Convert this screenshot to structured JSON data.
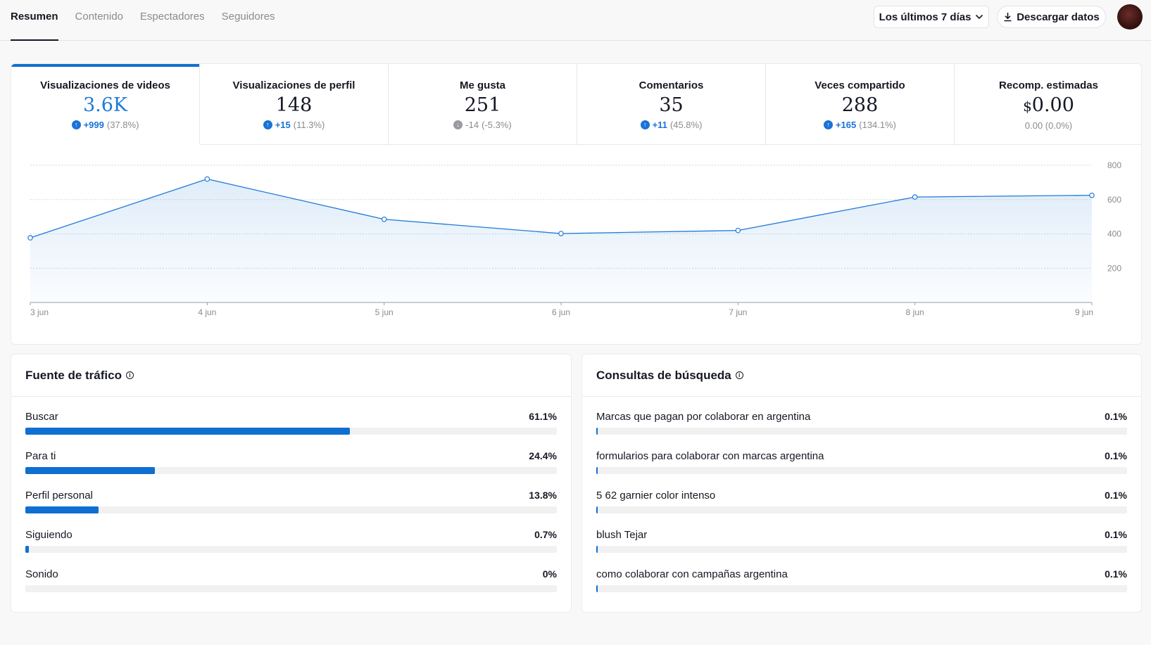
{
  "nav": {
    "tabs": [
      {
        "label": "Resumen",
        "active": true
      },
      {
        "label": "Contenido",
        "active": false
      },
      {
        "label": "Espectadores",
        "active": false
      },
      {
        "label": "Seguidores",
        "active": false
      }
    ],
    "date_range": "Los últimos 7 días",
    "download_label": "Descargar datos"
  },
  "metrics": [
    {
      "label": "Visualizaciones de videos",
      "value": "3.6K",
      "delta": "+999",
      "pct": "(37.8%)",
      "direction": "up",
      "active": true
    },
    {
      "label": "Visualizaciones de perfil",
      "value": "148",
      "delta": "+15",
      "pct": "(11.3%)",
      "direction": "up",
      "active": false
    },
    {
      "label": "Me gusta",
      "value": "251",
      "delta": "-14",
      "pct": "(-5.3%)",
      "direction": "down",
      "active": false
    },
    {
      "label": "Comentarios",
      "value": "35",
      "delta": "+11",
      "pct": "(45.8%)",
      "direction": "up",
      "active": false
    },
    {
      "label": "Veces compartido",
      "value": "288",
      "delta": "+165",
      "pct": "(134.1%)",
      "direction": "up",
      "active": false
    },
    {
      "label": "Recomp. estimadas",
      "value_prefix": "$",
      "value": "0.00",
      "delta": "",
      "pct": "0.00 (0.0%)",
      "direction": "none",
      "active": false
    }
  ],
  "chart_data": {
    "type": "area",
    "x": [
      "3 jun",
      "4 jun",
      "5 jun",
      "6 jun",
      "7 jun",
      "8 jun",
      "9 jun"
    ],
    "values": [
      377,
      720,
      485,
      402,
      420,
      615,
      625
    ],
    "yticks": [
      200,
      400,
      600,
      800
    ],
    "ylim": [
      0,
      800
    ],
    "grid": true,
    "line_color": "#1f7ad8"
  },
  "traffic": {
    "title": "Fuente de tráfico",
    "rows": [
      {
        "label": "Buscar",
        "pct_text": "61.1%",
        "value": 61.1
      },
      {
        "label": "Para ti",
        "pct_text": "24.4%",
        "value": 24.4
      },
      {
        "label": "Perfil personal",
        "pct_text": "13.8%",
        "value": 13.8
      },
      {
        "label": "Siguiendo",
        "pct_text": "0.7%",
        "value": 0.7
      },
      {
        "label": "Sonido",
        "pct_text": "0%",
        "value": 0
      }
    ]
  },
  "search": {
    "title": "Consultas de búsqueda",
    "rows": [
      {
        "label": "Marcas que pagan por colaborar en argentina",
        "pct_text": "0.1%",
        "value": 0.1
      },
      {
        "label": "formularios para colaborar con marcas argentina",
        "pct_text": "0.1%",
        "value": 0.1
      },
      {
        "label": "5 62 garnier color intenso",
        "pct_text": "0.1%",
        "value": 0.1
      },
      {
        "label": "blush Tejar",
        "pct_text": "0.1%",
        "value": 0.1
      },
      {
        "label": "como colaborar con campañas argentina",
        "pct_text": "0.1%",
        "value": 0.1
      }
    ]
  },
  "colors": {
    "accent": "#0f6fd1",
    "bar_track": "#f1f1f2"
  }
}
